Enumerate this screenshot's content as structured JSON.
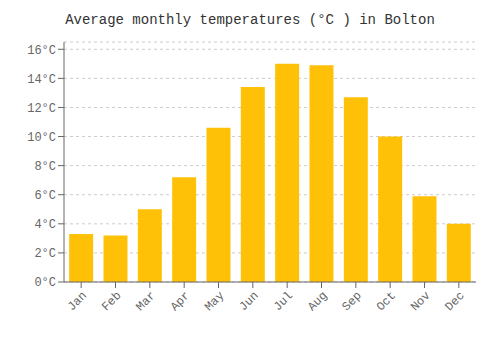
{
  "chart_data": {
    "type": "bar",
    "title": "Average monthly temperatures (°C ) in Bolton",
    "categories": [
      "Jan",
      "Feb",
      "Mar",
      "Apr",
      "May",
      "Jun",
      "Jul",
      "Aug",
      "Sep",
      "Oct",
      "Nov",
      "Dec"
    ],
    "values": [
      3.3,
      3.2,
      5.0,
      7.2,
      10.6,
      13.4,
      15.0,
      14.9,
      12.7,
      10.0,
      5.9,
      4.0
    ],
    "color": "#FFC107",
    "ylim": [
      0,
      16.5
    ],
    "yticks": [
      {
        "value": 0,
        "label": "0°C"
      },
      {
        "value": 2,
        "label": "2°C"
      },
      {
        "value": 4,
        "label": "4°C"
      },
      {
        "value": 6,
        "label": "6°C"
      },
      {
        "value": 8,
        "label": "8°C"
      },
      {
        "value": 10,
        "label": "10°C"
      },
      {
        "value": 12,
        "label": "12°C"
      },
      {
        "value": 14,
        "label": "14°C"
      },
      {
        "value": 16,
        "label": "16°C"
      }
    ],
    "grid": true
  }
}
